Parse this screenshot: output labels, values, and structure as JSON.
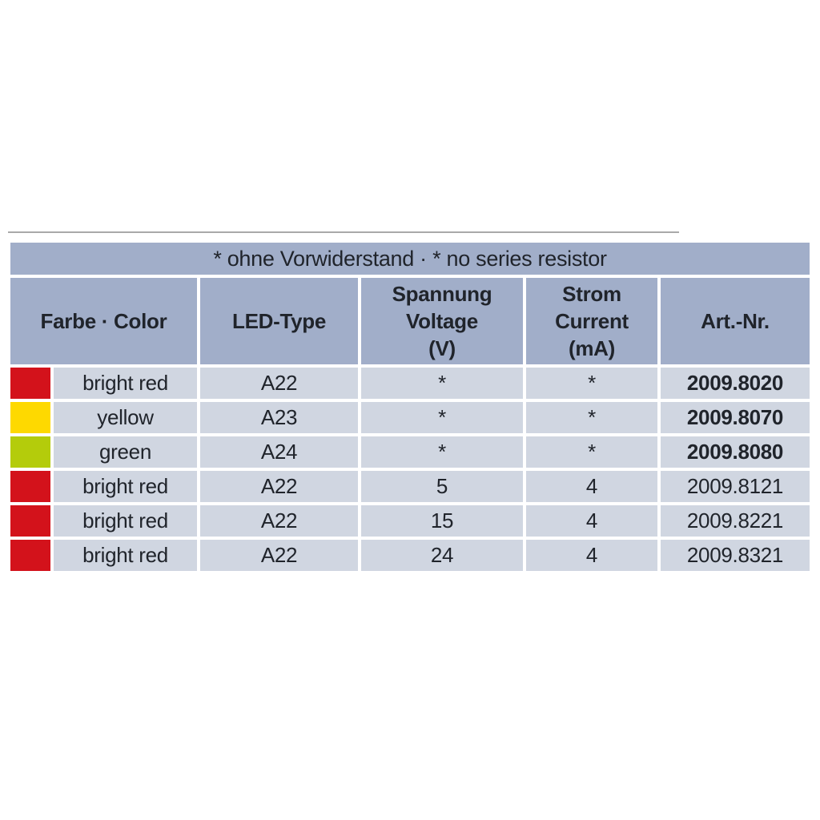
{
  "table": {
    "title": "* ohne Vorwiderstand · * no series resistor",
    "columns": [
      {
        "label": "Farbe · Color"
      },
      {
        "label": "LED-Type"
      },
      {
        "label": "Spannung\nVoltage\n(V)"
      },
      {
        "label": "Strom\nCurrent\n(mA)"
      },
      {
        "label": "Art.-Nr."
      }
    ],
    "rows": [
      {
        "swatch_color": "#d3121b",
        "swatch_name": "red",
        "color_name": "bright red",
        "led_type": "A22",
        "voltage": "*",
        "current": "*",
        "art_nr": "2009.8020",
        "art_nr_bold": true
      },
      {
        "swatch_color": "#fed900",
        "swatch_name": "yellow",
        "color_name": "yellow",
        "led_type": "A23",
        "voltage": "*",
        "current": "*",
        "art_nr": "2009.8070",
        "art_nr_bold": true
      },
      {
        "swatch_color": "#b4cc0b",
        "swatch_name": "yellow-green",
        "color_name": "green",
        "led_type": "A24",
        "voltage": "*",
        "current": "*",
        "art_nr": "2009.8080",
        "art_nr_bold": true
      },
      {
        "swatch_color": "#d3121b",
        "swatch_name": "red",
        "color_name": "bright red",
        "led_type": "A22",
        "voltage": "5",
        "current": "4",
        "art_nr": "2009.8121",
        "art_nr_bold": false
      },
      {
        "swatch_color": "#d3121b",
        "swatch_name": "red",
        "color_name": "bright red",
        "led_type": "A22",
        "voltage": "15",
        "current": "4",
        "art_nr": "2009.8221",
        "art_nr_bold": false
      },
      {
        "swatch_color": "#d3121b",
        "swatch_name": "red",
        "color_name": "bright red",
        "led_type": "A22",
        "voltage": "24",
        "current": "4",
        "art_nr": "2009.8321",
        "art_nr_bold": false
      }
    ],
    "colors": {
      "header_bg": "#a1aec9",
      "row_bg": "#d0d6e1",
      "text": "#20242b",
      "red": "#d3121b",
      "yellow": "#fed900",
      "green": "#b4cc0b",
      "divider": "#ffffff"
    }
  }
}
